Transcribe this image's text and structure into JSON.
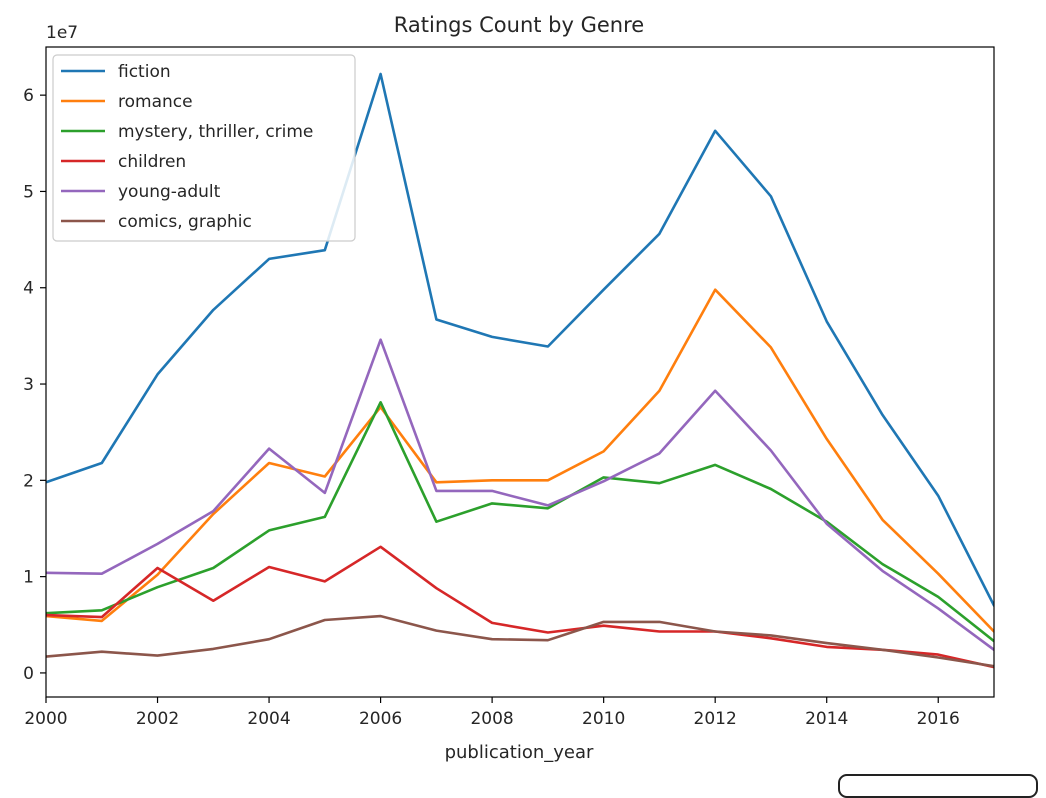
{
  "chart_data": {
    "type": "line",
    "title": "Ratings Count by Genre",
    "xlabel": "publication_year",
    "ylabel": "",
    "y_scale_label": "1e7",
    "xlim": [
      2000,
      2017
    ],
    "ylim": [
      -2500000,
      65000000
    ],
    "x": [
      2000,
      2001,
      2002,
      2003,
      2004,
      2005,
      2006,
      2007,
      2008,
      2009,
      2010,
      2011,
      2012,
      2013,
      2014,
      2015,
      2016,
      2017
    ],
    "x_ticks": [
      2000,
      2002,
      2004,
      2006,
      2008,
      2010,
      2012,
      2014,
      2016
    ],
    "x_tick_labels": [
      "2000",
      "2002",
      "2004",
      "2006",
      "2008",
      "2010",
      "2012",
      "2014",
      "2016"
    ],
    "y_ticks": [
      0,
      10000000,
      20000000,
      30000000,
      40000000,
      50000000,
      60000000
    ],
    "y_tick_labels": [
      "0",
      "1",
      "2",
      "3",
      "4",
      "5",
      "6"
    ],
    "legend_position": "upper-left",
    "grid": false,
    "series": [
      {
        "name": "fiction",
        "color": "#1f77b4",
        "values": [
          19800000,
          21800000,
          31000000,
          37700000,
          43000000,
          43900000,
          62200000,
          36700000,
          34900000,
          33900000,
          39800000,
          45600000,
          56300000,
          49500000,
          36500000,
          26800000,
          18400000,
          7000000
        ]
      },
      {
        "name": "romance",
        "color": "#ff7f0e",
        "values": [
          5900000,
          5400000,
          10200000,
          16500000,
          21800000,
          20400000,
          27600000,
          19800000,
          20000000,
          20000000,
          23000000,
          29300000,
          39800000,
          33800000,
          24300000,
          15900000,
          10300000,
          4300000
        ]
      },
      {
        "name": "mystery, thriller, crime",
        "color": "#2ca02c",
        "values": [
          6200000,
          6500000,
          8900000,
          10900000,
          14800000,
          16200000,
          28100000,
          15700000,
          17600000,
          17100000,
          20300000,
          19700000,
          21600000,
          19100000,
          15700000,
          11300000,
          7900000,
          3300000
        ]
      },
      {
        "name": "children",
        "color": "#d62728",
        "values": [
          6000000,
          5800000,
          10900000,
          7500000,
          11000000,
          9500000,
          13100000,
          8800000,
          5200000,
          4200000,
          4900000,
          4300000,
          4300000,
          3600000,
          2700000,
          2400000,
          1900000,
          600000
        ]
      },
      {
        "name": "young-adult",
        "color": "#9467bd",
        "values": [
          10400000,
          10300000,
          13400000,
          16800000,
          23300000,
          18700000,
          34600000,
          18900000,
          18900000,
          17400000,
          19900000,
          22800000,
          29300000,
          23100000,
          15500000,
          10600000,
          6700000,
          2400000
        ]
      },
      {
        "name": "comics, graphic",
        "color": "#8c564b",
        "values": [
          1700000,
          2200000,
          1800000,
          2500000,
          3500000,
          5500000,
          5900000,
          4400000,
          3500000,
          3400000,
          5300000,
          5300000,
          4300000,
          3900000,
          3100000,
          2400000,
          1600000,
          700000
        ]
      }
    ]
  }
}
